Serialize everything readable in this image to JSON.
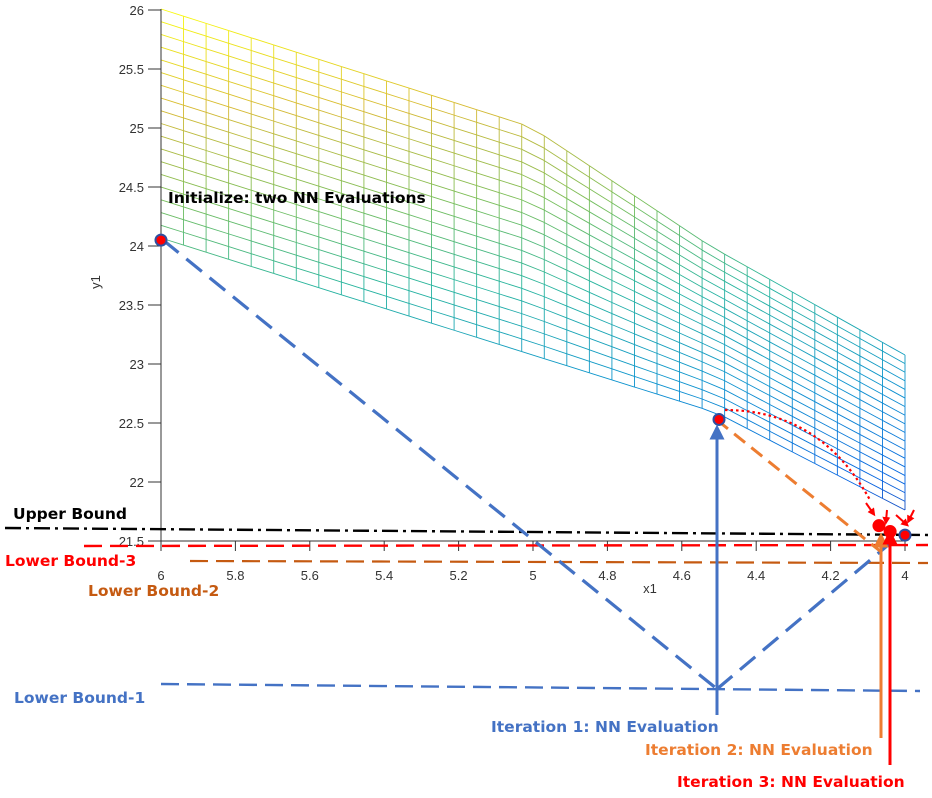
{
  "chart_data": {
    "type": "surface-3d-with-bounding-annotations",
    "xlabel": "x1",
    "ylabel": "y1",
    "x_ticks": [
      "6",
      "5.8",
      "5.6",
      "5.4",
      "5.2",
      "5",
      "4.8",
      "4.6",
      "4.4",
      "4.2",
      "4"
    ],
    "y_ticks": [
      "26",
      "25.5",
      "25",
      "24.5",
      "24",
      "23.5",
      "23",
      "22.5",
      "22",
      "21.5"
    ],
    "x_range": [
      6,
      4
    ],
    "y_range": [
      21.5,
      26
    ],
    "colormap": "parula",
    "points": [
      {
        "label": "initial-1",
        "x": 6.0,
        "y": 24.05
      },
      {
        "label": "initial-2",
        "x": 4.0,
        "y": 21.55
      },
      {
        "label": "iteration-1",
        "x": 4.5,
        "y": 22.53
      },
      {
        "label": "iteration-2",
        "x": 4.07,
        "y": 21.63
      },
      {
        "label": "iteration-3",
        "x": 4.04,
        "y": 21.58
      }
    ],
    "annotations": {
      "initialize": "Initialize: two NN Evaluations",
      "upper_bound": "Upper Bound",
      "lower_bound_1": "Lower Bound-1",
      "lower_bound_2": "Lower Bound-2",
      "lower_bound_3": "Lower Bound-3",
      "iteration_1": "Iteration 1: NN Evaluation",
      "iteration_2": "Iteration 2: NN Evaluation",
      "iteration_3": "Iteration 3: NN Evaluation"
    },
    "colors": {
      "blue": "#4472C4",
      "orange": "#ED7D31",
      "dark_orange": "#C55A11",
      "red": "#FF0000",
      "black": "#000000"
    }
  }
}
